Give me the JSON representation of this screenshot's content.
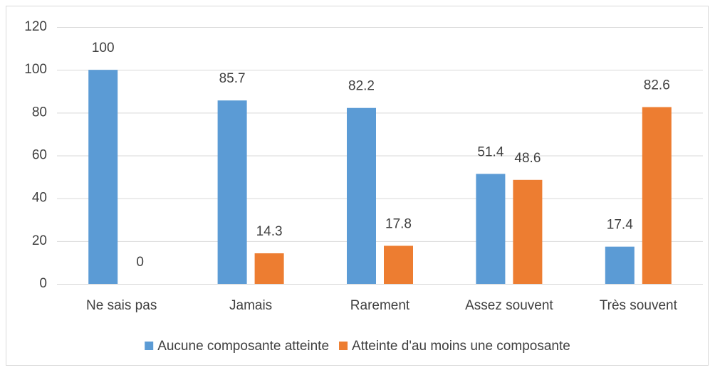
{
  "chart_data": {
    "type": "bar",
    "categories": [
      "Ne sais pas",
      "Jamais",
      "Rarement",
      "Assez souvent",
      "Très souvent"
    ],
    "series": [
      {
        "name": "Aucune composante atteinte",
        "color": "#5b9bd5",
        "values": [
          100,
          85.7,
          82.2,
          51.4,
          17.4
        ]
      },
      {
        "name": "Atteinte d'au moins une composante",
        "color": "#ed7d31",
        "values": [
          0,
          14.3,
          17.8,
          48.6,
          82.6
        ]
      }
    ],
    "ylim": [
      0,
      120
    ],
    "yticks": [
      0,
      20,
      40,
      60,
      80,
      100,
      120
    ],
    "grid": true,
    "legend": "bottom"
  }
}
